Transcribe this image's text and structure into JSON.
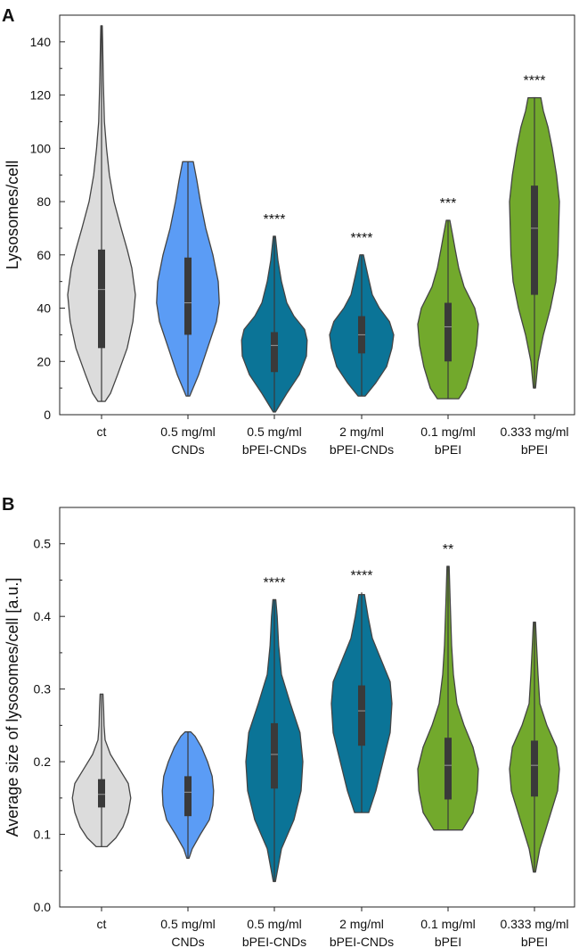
{
  "colors": {
    "ct": "#dcdcdc",
    "cnds": "#5b9cf5",
    "bpei_cnds": "#0b7497",
    "bpei": "#72a92c",
    "outline": "#444444",
    "box": "#3a3a3a"
  },
  "categories": [
    [
      "ct"
    ],
    [
      "0.5 mg/ml",
      "CNDs"
    ],
    [
      "0.5 mg/ml",
      "bPEI-CNDs"
    ],
    [
      "2 mg/ml",
      "bPEI-CNDs"
    ],
    [
      "0.1 mg/ml",
      "bPEI"
    ],
    [
      "0.333 mg/ml",
      "bPEI"
    ]
  ],
  "chart_data": [
    {
      "panel": "A",
      "type": "violin",
      "ylabel": "Lysosomes/cell",
      "ylim": [
        0,
        150
      ],
      "yticks": [
        0,
        20,
        40,
        60,
        80,
        100,
        120,
        140
      ],
      "series": [
        {
          "color_key": "ct",
          "min": 5,
          "q1": 25,
          "median": 47,
          "q3": 62,
          "max": 146,
          "annotation": "",
          "profile": [
            [
              5,
              0.1
            ],
            [
              8,
              0.25
            ],
            [
              15,
              0.45
            ],
            [
              25,
              0.72
            ],
            [
              35,
              0.88
            ],
            [
              45,
              0.95
            ],
            [
              55,
              0.85
            ],
            [
              62,
              0.72
            ],
            [
              70,
              0.55
            ],
            [
              80,
              0.35
            ],
            [
              90,
              0.22
            ],
            [
              100,
              0.14
            ],
            [
              110,
              0.08
            ],
            [
              125,
              0.05
            ],
            [
              140,
              0.03
            ],
            [
              146,
              0.02
            ]
          ]
        },
        {
          "color_key": "cnds",
          "min": 7,
          "q1": 30,
          "median": 42,
          "q3": 59,
          "max": 95,
          "annotation": "",
          "profile": [
            [
              7,
              0.05
            ],
            [
              15,
              0.3
            ],
            [
              25,
              0.55
            ],
            [
              35,
              0.8
            ],
            [
              42,
              0.88
            ],
            [
              50,
              0.85
            ],
            [
              60,
              0.7
            ],
            [
              70,
              0.5
            ],
            [
              80,
              0.35
            ],
            [
              88,
              0.25
            ],
            [
              95,
              0.15
            ]
          ]
        },
        {
          "color_key": "bpei_cnds",
          "min": 1,
          "q1": 16,
          "median": 26,
          "q3": 31,
          "max": 67,
          "annotation": "****",
          "profile": [
            [
              1,
              0.03
            ],
            [
              8,
              0.35
            ],
            [
              15,
              0.7
            ],
            [
              22,
              0.9
            ],
            [
              28,
              0.92
            ],
            [
              32,
              0.85
            ],
            [
              37,
              0.55
            ],
            [
              42,
              0.35
            ],
            [
              50,
              0.2
            ],
            [
              58,
              0.1
            ],
            [
              67,
              0.03
            ]
          ]
        },
        {
          "color_key": "bpei_cnds",
          "min": 7,
          "q1": 23,
          "median": 30,
          "q3": 37,
          "max": 60,
          "annotation": "****",
          "profile": [
            [
              7,
              0.1
            ],
            [
              12,
              0.4
            ],
            [
              18,
              0.7
            ],
            [
              25,
              0.85
            ],
            [
              30,
              0.9
            ],
            [
              35,
              0.78
            ],
            [
              40,
              0.5
            ],
            [
              45,
              0.3
            ],
            [
              52,
              0.18
            ],
            [
              60,
              0.05
            ]
          ]
        },
        {
          "color_key": "bpei",
          "min": 6,
          "q1": 20,
          "median": 33,
          "q3": 42,
          "max": 73,
          "annotation": "***",
          "profile": [
            [
              6,
              0.3
            ],
            [
              10,
              0.5
            ],
            [
              18,
              0.68
            ],
            [
              26,
              0.8
            ],
            [
              34,
              0.85
            ],
            [
              40,
              0.75
            ],
            [
              48,
              0.45
            ],
            [
              55,
              0.3
            ],
            [
              62,
              0.2
            ],
            [
              68,
              0.12
            ],
            [
              73,
              0.05
            ]
          ]
        },
        {
          "color_key": "bpei",
          "min": 10,
          "q1": 45,
          "median": 70,
          "q3": 86,
          "max": 119,
          "annotation": "****",
          "profile": [
            [
              10,
              0.03
            ],
            [
              20,
              0.1
            ],
            [
              30,
              0.25
            ],
            [
              40,
              0.45
            ],
            [
              50,
              0.6
            ],
            [
              60,
              0.66
            ],
            [
              70,
              0.68
            ],
            [
              80,
              0.7
            ],
            [
              90,
              0.62
            ],
            [
              100,
              0.5
            ],
            [
              108,
              0.38
            ],
            [
              114,
              0.25
            ],
            [
              119,
              0.18
            ]
          ]
        }
      ]
    },
    {
      "panel": "B",
      "type": "violin",
      "ylabel": "Average size of lysosomes/cell [a.u.]",
      "ylim": [
        0,
        0.55
      ],
      "yticks": [
        0.0,
        0.1,
        0.2,
        0.3,
        0.4,
        0.5
      ],
      "series": [
        {
          "color_key": "ct",
          "min": 0.083,
          "q1": 0.137,
          "median": 0.155,
          "q3": 0.176,
          "max": 0.293,
          "annotation": "",
          "profile": [
            [
              0.083,
              0.15
            ],
            [
              0.095,
              0.4
            ],
            [
              0.11,
              0.6
            ],
            [
              0.13,
              0.75
            ],
            [
              0.15,
              0.82
            ],
            [
              0.17,
              0.75
            ],
            [
              0.19,
              0.5
            ],
            [
              0.21,
              0.25
            ],
            [
              0.23,
              0.1
            ],
            [
              0.25,
              0.07
            ],
            [
              0.27,
              0.06
            ],
            [
              0.293,
              0.04
            ]
          ]
        },
        {
          "color_key": "cnds",
          "min": 0.067,
          "q1": 0.125,
          "median": 0.158,
          "q3": 0.18,
          "max": 0.241,
          "annotation": "",
          "profile": [
            [
              0.067,
              0.03
            ],
            [
              0.08,
              0.12
            ],
            [
              0.1,
              0.35
            ],
            [
              0.12,
              0.6
            ],
            [
              0.14,
              0.7
            ],
            [
              0.16,
              0.72
            ],
            [
              0.18,
              0.68
            ],
            [
              0.2,
              0.55
            ],
            [
              0.22,
              0.38
            ],
            [
              0.235,
              0.2
            ],
            [
              0.241,
              0.08
            ]
          ]
        },
        {
          "color_key": "bpei_cnds",
          "min": 0.035,
          "q1": 0.163,
          "median": 0.21,
          "q3": 0.253,
          "max": 0.423,
          "annotation": "****",
          "profile": [
            [
              0.035,
              0.03
            ],
            [
              0.08,
              0.2
            ],
            [
              0.12,
              0.55
            ],
            [
              0.16,
              0.75
            ],
            [
              0.2,
              0.8
            ],
            [
              0.24,
              0.72
            ],
            [
              0.28,
              0.45
            ],
            [
              0.32,
              0.2
            ],
            [
              0.36,
              0.12
            ],
            [
              0.4,
              0.08
            ],
            [
              0.423,
              0.04
            ]
          ]
        },
        {
          "color_key": "bpei_cnds",
          "min": 0.13,
          "q1": 0.222,
          "median": 0.27,
          "q3": 0.305,
          "max": 0.433,
          "annotation": "****",
          "profile": [
            [
              0.13,
              0.2
            ],
            [
              0.16,
              0.4
            ],
            [
              0.2,
              0.6
            ],
            [
              0.24,
              0.8
            ],
            [
              0.28,
              0.85
            ],
            [
              0.31,
              0.8
            ],
            [
              0.34,
              0.55
            ],
            [
              0.37,
              0.3
            ],
            [
              0.4,
              0.18
            ],
            [
              0.43,
              0.08
            ]
          ]
        },
        {
          "color_key": "bpei",
          "min": 0.106,
          "q1": 0.148,
          "median": 0.195,
          "q3": 0.233,
          "max": 0.469,
          "annotation": "**",
          "profile": [
            [
              0.106,
              0.4
            ],
            [
              0.13,
              0.7
            ],
            [
              0.16,
              0.82
            ],
            [
              0.19,
              0.85
            ],
            [
              0.22,
              0.7
            ],
            [
              0.25,
              0.45
            ],
            [
              0.28,
              0.25
            ],
            [
              0.32,
              0.15
            ],
            [
              0.36,
              0.1
            ],
            [
              0.42,
              0.06
            ],
            [
              0.469,
              0.03
            ]
          ]
        },
        {
          "color_key": "bpei",
          "min": 0.048,
          "q1": 0.152,
          "median": 0.195,
          "q3": 0.229,
          "max": 0.392,
          "annotation": "",
          "profile": [
            [
              0.048,
              0.03
            ],
            [
              0.08,
              0.15
            ],
            [
              0.12,
              0.4
            ],
            [
              0.16,
              0.65
            ],
            [
              0.19,
              0.7
            ],
            [
              0.22,
              0.62
            ],
            [
              0.25,
              0.35
            ],
            [
              0.28,
              0.15
            ],
            [
              0.32,
              0.1
            ],
            [
              0.36,
              0.06
            ],
            [
              0.392,
              0.03
            ]
          ]
        }
      ]
    }
  ],
  "panel_labels": [
    "A",
    "B"
  ]
}
